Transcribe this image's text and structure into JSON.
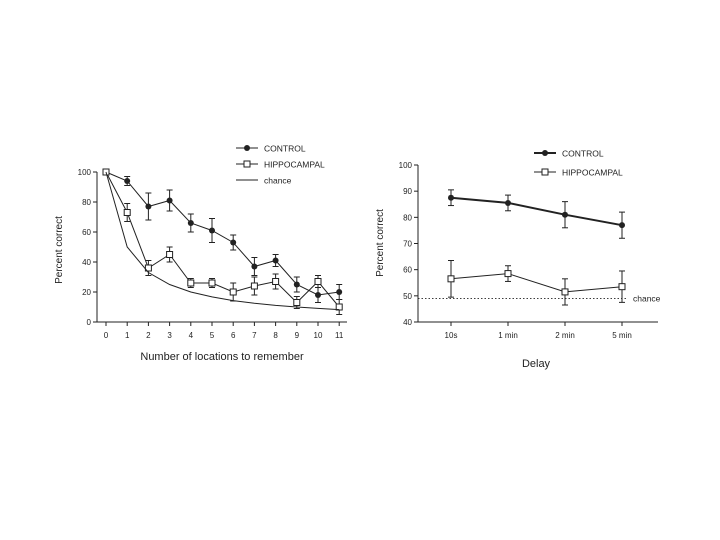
{
  "colors": {
    "ink": "#222222",
    "background": "#ffffff"
  },
  "chart_data": [
    {
      "type": "line",
      "title": "",
      "xlabel": "Number of locations to remember",
      "ylabel": "Percent correct",
      "categories": [
        "0",
        "1",
        "2",
        "3",
        "4",
        "5",
        "6",
        "7",
        "8",
        "9",
        "10",
        "11"
      ],
      "xlim": [
        0,
        11
      ],
      "ylim": [
        0,
        100
      ],
      "yticks": [
        0,
        20,
        40,
        60,
        80,
        100
      ],
      "grid": false,
      "legend_position": "top-right",
      "series": [
        {
          "name": "CONTROL",
          "marker": "filled-circle",
          "values": [
            100,
            94,
            77,
            81,
            66,
            61,
            53,
            37,
            41,
            25,
            18,
            20
          ],
          "error": [
            0,
            3,
            9,
            7,
            6,
            8,
            5,
            6,
            4,
            5,
            5,
            5
          ]
        },
        {
          "name": "HIPPOCAMPAL",
          "marker": "open-square",
          "values": [
            100,
            73,
            36,
            45,
            26,
            26,
            20,
            24,
            27,
            13,
            27,
            10
          ],
          "error": [
            0,
            6,
            5,
            5,
            3,
            3,
            6,
            6,
            5,
            4,
            4,
            5
          ]
        },
        {
          "name": "chance",
          "marker": "none",
          "values": [
            100,
            50,
            33,
            25,
            20,
            16.7,
            14.3,
            12.5,
            11.1,
            10,
            9.1,
            8.3
          ]
        }
      ]
    },
    {
      "type": "line",
      "title": "",
      "xlabel": "Delay",
      "ylabel": "Percent correct",
      "categories": [
        "10s",
        "1 min",
        "2 min",
        "5 min"
      ],
      "ylim": [
        40,
        100
      ],
      "yticks": [
        40,
        50,
        60,
        70,
        80,
        90,
        100
      ],
      "grid": false,
      "legend_position": "top-right",
      "chance_level": 49,
      "chance_label": "chance",
      "series": [
        {
          "name": "CONTROL",
          "marker": "filled-circle",
          "values": [
            87.5,
            85.5,
            81,
            77
          ],
          "error": [
            3,
            3,
            5,
            5
          ]
        },
        {
          "name": "HIPPOCAMPAL",
          "marker": "open-square",
          "values": [
            56.5,
            58.5,
            51.5,
            53.5
          ],
          "error": [
            7,
            3,
            5,
            6
          ]
        }
      ]
    }
  ]
}
